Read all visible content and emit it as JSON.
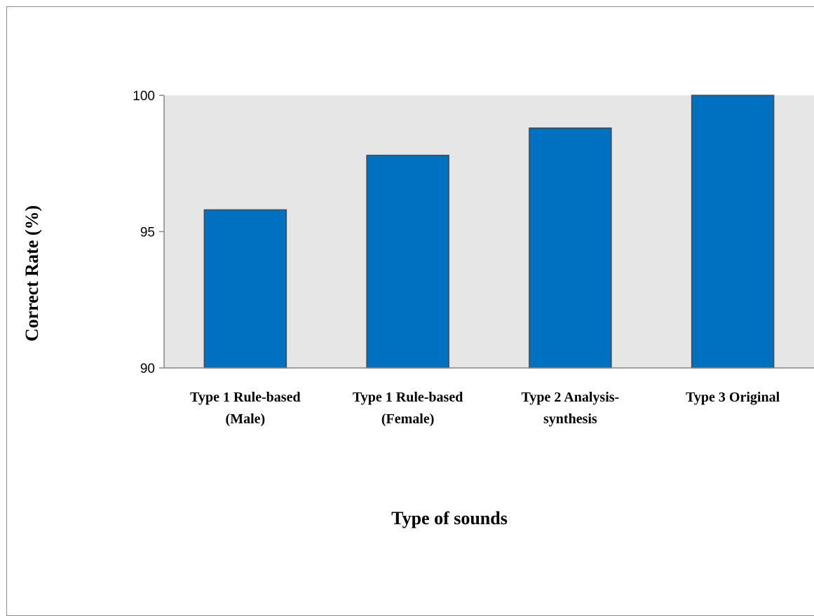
{
  "chart_data": {
    "type": "bar",
    "categories": [
      [
        "Type 1 Rule-based",
        "(Male)"
      ],
      [
        "Type 1 Rule-based",
        "(Female)"
      ],
      [
        "Type 2 Analysis-",
        "synthesis"
      ],
      [
        "Type 3 Original"
      ]
    ],
    "values": [
      95.8,
      97.8,
      98.8,
      100
    ],
    "xlabel": "Type of sounds",
    "ylabel": "Correct Rate (%)",
    "ylim": [
      90,
      100
    ],
    "yticks": [
      90,
      95,
      100
    ],
    "grid": false,
    "legend": "none",
    "colors": {
      "bar": "#0070c0",
      "bar_border": "#4a4a4a",
      "plot_background": "#e6e6e6",
      "axis": "#868686"
    }
  }
}
